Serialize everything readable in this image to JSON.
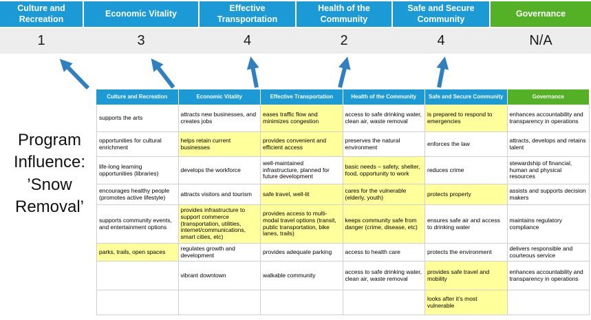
{
  "title": "Program Influence: ’Snow Removal’",
  "colors": {
    "header_blue": "#1b9ad6",
    "header_green": "#54b126",
    "highlight_yellow": "#ffff9c",
    "arrow_blue": "#2f7fc1",
    "score_band_bg": "#ededed"
  },
  "scoreboard": {
    "columns": [
      {
        "label": "Culture and Recreation",
        "score": "1",
        "color": "blue"
      },
      {
        "label": "Economic Vitality",
        "score": "3",
        "color": "blue"
      },
      {
        "label": "Effective Transportation",
        "score": "4",
        "color": "blue"
      },
      {
        "label": "Health of the Community",
        "score": "2",
        "color": "blue"
      },
      {
        "label": "Safe and Secure Community",
        "score": "4",
        "color": "blue"
      },
      {
        "label": "Governance",
        "score": "N/A",
        "color": "green"
      }
    ]
  },
  "table": {
    "headers": [
      "Culture and Recreation",
      "Economic Vitality",
      "Effective Transportation",
      "Health of the Community",
      "Safe and Secure Community",
      "Governance"
    ],
    "rows": [
      [
        {
          "text": "supports the arts",
          "highlight": false
        },
        {
          "text": "attracts new businesses, and creates jobs",
          "highlight": false
        },
        {
          "text": "eases traffic flow and minimizes congestion",
          "highlight": true
        },
        {
          "text": "access to safe drinking water, clean air, waste removal",
          "highlight": false
        },
        {
          "text": "is prepared to respond to emergencies",
          "highlight": true
        },
        {
          "text": "enhances accountability and transparency in operations",
          "highlight": false
        }
      ],
      [
        {
          "text": "opportunities for cultural enrichment",
          "highlight": false
        },
        {
          "text": "helps retain current businesses",
          "highlight": true
        },
        {
          "text": "provides convenient and efficient access",
          "highlight": true
        },
        {
          "text": "preserves the natural environment",
          "highlight": false
        },
        {
          "text": "enforces the law",
          "highlight": false
        },
        {
          "text": "attracts, develops and retains talent",
          "highlight": false
        }
      ],
      [
        {
          "text": "life-long learning opportunities (libraries)",
          "highlight": false
        },
        {
          "text": "develops the workforce",
          "highlight": false
        },
        {
          "text": "well-maintained infrastructure, planned for future development",
          "highlight": false
        },
        {
          "text": "basic needs – safety, shelter, food, opportunity to work",
          "highlight": true
        },
        {
          "text": "reduces crime",
          "highlight": false
        },
        {
          "text": "stewardship of financial, human and physical resources",
          "highlight": false
        }
      ],
      [
        {
          "text": "encourages healthy people (promotes active lifestyle)",
          "highlight": false
        },
        {
          "text": "attracts visitors and tourism",
          "highlight": false
        },
        {
          "text": "safe travel, well-lit",
          "highlight": true
        },
        {
          "text": "cares for the vulnerable (elderly, youth)",
          "highlight": true
        },
        {
          "text": "protects property",
          "highlight": true
        },
        {
          "text": "assists and supports decision makers",
          "highlight": false
        }
      ],
      [
        {
          "text": "supports community events, and entertainment options",
          "highlight": false
        },
        {
          "text": "provides infrastructure to support commerce (transportation, utilities, internet/communications, smart cities, etc)",
          "highlight": true
        },
        {
          "text": "provides access to multi-modal travel options (transit, public transportation, bike lanes, trails)",
          "highlight": true
        },
        {
          "text": "keeps community safe from danger (crime, disease, etc)",
          "highlight": true
        },
        {
          "text": "ensures safe air and access to drinking water",
          "highlight": false
        },
        {
          "text": "maintains regulatory compliance",
          "highlight": false
        }
      ],
      [
        {
          "text": "parks, trails, open spaces",
          "highlight": true
        },
        {
          "text": "regulates growth and development",
          "highlight": false
        },
        {
          "text": "provides adequate parking",
          "highlight": false
        },
        {
          "text": "access to health care",
          "highlight": false
        },
        {
          "text": "protects the environment",
          "highlight": false
        },
        {
          "text": "delivers responsible and courteous service",
          "highlight": false
        }
      ],
      [
        {
          "text": "",
          "highlight": false
        },
        {
          "text": "vibrant downtown",
          "highlight": false
        },
        {
          "text": "walkable community",
          "highlight": false
        },
        {
          "text": "access to safe drinking water, clean air, waste removal",
          "highlight": false
        },
        {
          "text": "provides safe travel and mobility",
          "highlight": true
        },
        {
          "text": "enhances accountability and transparency in operations",
          "highlight": false
        }
      ],
      [
        {
          "text": "",
          "highlight": false
        },
        {
          "text": "",
          "highlight": false
        },
        {
          "text": "",
          "highlight": false
        },
        {
          "text": "",
          "highlight": false
        },
        {
          "text": "looks after it’s most vulnerable",
          "highlight": true
        },
        {
          "text": "",
          "highlight": false
        }
      ]
    ]
  }
}
